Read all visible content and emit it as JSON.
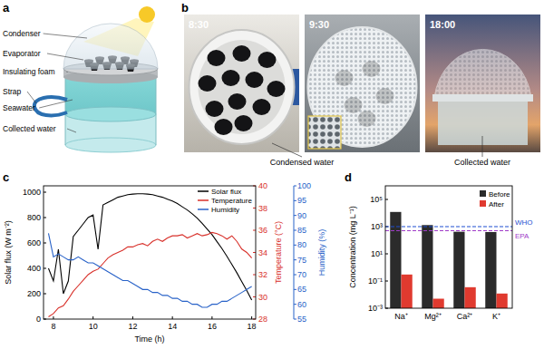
{
  "panel_a": {
    "letter": "a",
    "labels": [
      "Condenser",
      "Evaporator",
      "Insulating foam",
      "Strap",
      "Seawater",
      "Collected water"
    ]
  },
  "panel_b": {
    "letter": "b",
    "times": [
      "8:30",
      "9:30",
      "18:00"
    ],
    "captions": [
      "Condensed water",
      "Collected water"
    ]
  },
  "chart_data": [
    {
      "type": "line",
      "title": "c",
      "x": [
        7.75,
        8,
        8.25,
        8.5,
        8.75,
        9,
        9.25,
        9.5,
        9.75,
        10,
        10.25,
        10.5,
        10.75,
        11,
        11.25,
        11.5,
        11.75,
        12,
        12.25,
        12.5,
        12.75,
        13,
        13.25,
        13.5,
        13.75,
        14,
        14.25,
        14.5,
        14.75,
        15,
        15.25,
        15.5,
        15.75,
        16,
        16.25,
        16.5,
        16.75,
        17,
        17.25,
        17.5,
        17.75,
        18
      ],
      "xlim": [
        7.5,
        18.2
      ],
      "xticks": [
        8,
        10,
        12,
        14,
        16,
        18
      ],
      "x_label": "Time (h)",
      "ylim": [
        0,
        1050
      ],
      "yticks": [
        0,
        200,
        400,
        600,
        800,
        1000
      ],
      "y_label": "Solar flux (W m⁻²)",
      "y2lim": [
        28,
        40
      ],
      "y2ticks": [
        28,
        30,
        32,
        34,
        36,
        38,
        40
      ],
      "y2_label": "Temperature (°C)",
      "y3lim": [
        55,
        100
      ],
      "y3ticks": [
        55,
        60,
        65,
        70,
        75,
        80,
        85,
        90,
        95,
        100
      ],
      "y3_label": "Humidity (%)",
      "legend": "upper right",
      "grid": false,
      "series": [
        {
          "name": "Solar flux",
          "color": "#000000",
          "values": [
            400,
            300,
            550,
            200,
            300,
            650,
            700,
            750,
            800,
            820,
            550,
            900,
            920,
            940,
            960,
            970,
            980,
            985,
            988,
            988,
            985,
            980,
            970,
            960,
            945,
            930,
            910,
            885,
            860,
            830,
            795,
            755,
            710,
            665,
            610,
            555,
            495,
            430,
            365,
            295,
            225,
            150
          ]
        },
        {
          "name": "Temperature",
          "color": "#d8302a",
          "axis": "y2",
          "values": [
            28.2,
            28.5,
            29,
            29.2,
            29.8,
            30.5,
            31,
            31.5,
            32,
            32.3,
            32.5,
            33,
            33.5,
            33.8,
            34,
            34.2,
            34.5,
            34.5,
            34.7,
            34.8,
            34.6,
            35,
            35.2,
            35,
            35.3,
            35.5,
            35.5,
            35.6,
            35.3,
            35.5,
            35.7,
            35.5,
            35.6,
            35.8,
            35.7,
            35.5,
            35.2,
            35.5,
            35,
            34.3,
            34,
            33.5
          ]
        },
        {
          "name": "Humidity",
          "color": "#2862c8",
          "axis": "y3",
          "values": [
            84,
            76,
            77,
            76,
            75,
            75,
            76,
            75,
            74,
            74,
            73,
            72,
            71,
            70,
            69,
            68,
            68,
            67,
            66,
            65,
            65,
            64,
            64,
            63,
            63,
            62,
            62,
            61,
            61,
            60,
            60,
            59,
            59,
            60,
            60,
            61,
            61,
            62,
            63,
            64,
            65,
            66
          ]
        }
      ]
    },
    {
      "type": "bar",
      "title": "d",
      "categories": [
        "Na⁺",
        "Mg²⁺",
        "Ca²⁺",
        "K⁺"
      ],
      "log": "y",
      "ylim": [
        0.001,
        1000000
      ],
      "yticks": [
        {
          "value": 0.001,
          "label": "10⁻³"
        },
        {
          "value": 0.1,
          "label": "10⁻¹"
        },
        {
          "value": 10,
          "label": "10¹"
        },
        {
          "value": 1000,
          "label": "10³"
        },
        {
          "value": 100000,
          "label": "10⁵"
        }
      ],
      "y_label": "Concentration (mg L⁻¹)",
      "legend": "upper right",
      "grid": false,
      "series": [
        {
          "name": "Before",
          "color": "#2b2b2b",
          "values": [
            12000,
            1300,
            420,
            400
          ]
        },
        {
          "name": "After",
          "color": "#e03a2f",
          "values": [
            0.3,
            0.005,
            0.035,
            0.012
          ]
        }
      ],
      "reference_lines": [
        {
          "label": "WHO",
          "value": 1000,
          "color": "#1f4fd1",
          "line_style": "dashed"
        },
        {
          "label": "EPA",
          "value": 500,
          "color": "#a03cc8",
          "line_style": "dashed"
        }
      ]
    }
  ]
}
